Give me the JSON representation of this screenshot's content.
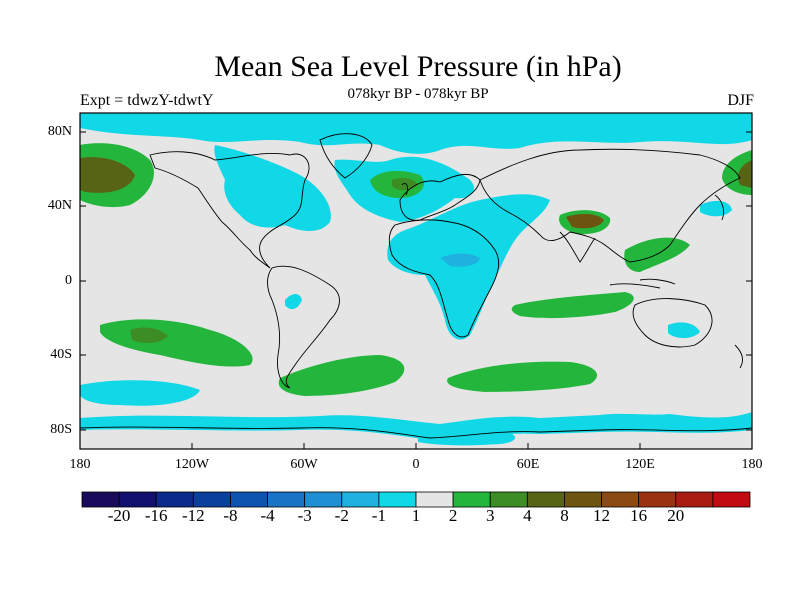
{
  "header": {
    "title": "Mean Sea Level Pressure (in hPa)",
    "subtitle": "078kyr BP - 078kyr BP",
    "experiment": "Expt = tdwzY-tdwtY",
    "season": "DJF"
  },
  "axes": {
    "y_ticks": [
      "80N",
      "40N",
      "0",
      "40S",
      "80S"
    ],
    "x_ticks": [
      "180",
      "120W",
      "60W",
      "0",
      "60E",
      "120E",
      "180"
    ]
  },
  "colorbar": {
    "colors": [
      "#1a0a5c",
      "#11106e",
      "#0c2a8a",
      "#0b3f9e",
      "#0d54b0",
      "#1a73c6",
      "#1f8fd4",
      "#1fb2e0",
      "#10d8e6",
      "#e5e5e5",
      "#24b63c",
      "#3d8d24",
      "#576415",
      "#6d5510",
      "#8a4a12",
      "#9a3212",
      "#a81c12",
      "#c20a12"
    ],
    "labels": [
      "-20",
      "-16",
      "-12",
      "-8",
      "-4",
      "-3",
      "-2",
      "-1",
      "1",
      "2",
      "3",
      "4",
      "8",
      "12",
      "16",
      "20"
    ]
  },
  "chart_data": {
    "type": "map-contour",
    "title": "Mean Sea Level Pressure (in hPa)",
    "subtitle": "078kyr BP - 078kyr BP",
    "variable": "MSLP difference",
    "units": "hPa",
    "season": "DJF",
    "lon_range": [
      -180,
      180
    ],
    "lat_range": [
      -90,
      90
    ],
    "levels": [
      -20,
      -16,
      -12,
      -8,
      -4,
      -3,
      -2,
      -1,
      1,
      2,
      3,
      4,
      8,
      12,
      16,
      20
    ],
    "background_color": "#e5e5e5",
    "regions": [
      {
        "name": "arctic-negative",
        "lon": [
          -180,
          180
        ],
        "lat": [
          65,
          90
        ],
        "value": -1.5,
        "color": "#10d8e6"
      },
      {
        "name": "north-pacific-positive",
        "lon": [
          -180,
          -150
        ],
        "lat": [
          35,
          70
        ],
        "value": 3.5,
        "color": "#576415"
      },
      {
        "name": "west-pacific-positive",
        "lon": [
          155,
          180
        ],
        "lat": [
          40,
          70
        ],
        "value": 3.5,
        "color": "#576415"
      },
      {
        "name": "north-atlantic-positive",
        "lon": [
          -25,
          5
        ],
        "lat": [
          45,
          62
        ],
        "value": 2.5,
        "color": "#3d8d24"
      },
      {
        "name": "tibet-positive",
        "lon": [
          75,
          105
        ],
        "lat": [
          25,
          45
        ],
        "value": 4,
        "color": "#6d5510"
      },
      {
        "name": "north-america-negative",
        "lon": [
          -140,
          -60
        ],
        "lat": [
          25,
          75
        ],
        "value": -1.5,
        "color": "#10d8e6"
      },
      {
        "name": "africa-negative",
        "lon": [
          -5,
          50
        ],
        "lat": [
          -35,
          35
        ],
        "value": -1.5,
        "color": "#10d8e6"
      },
      {
        "name": "south-pacific-positive",
        "lon": [
          -170,
          -100
        ],
        "lat": [
          -50,
          -25
        ],
        "value": 2.5,
        "color": "#3d8d24"
      },
      {
        "name": "south-atlantic-positive",
        "lon": [
          -80,
          -10
        ],
        "lat": [
          -65,
          -40
        ],
        "value": 1.5,
        "color": "#24b63c"
      },
      {
        "name": "south-indian-positive",
        "lon": [
          20,
          110
        ],
        "lat": [
          -60,
          -40
        ],
        "value": 1.5,
        "color": "#24b63c"
      },
      {
        "name": "indian-ocean-positive",
        "lon": [
          40,
          130
        ],
        "lat": [
          -25,
          -5
        ],
        "value": 1.5,
        "color": "#24b63c"
      },
      {
        "name": "southern-ocean-negative",
        "lon": [
          -180,
          180
        ],
        "lat": [
          -90,
          -65
        ],
        "value": -1.5,
        "color": "#10d8e6"
      }
    ]
  }
}
